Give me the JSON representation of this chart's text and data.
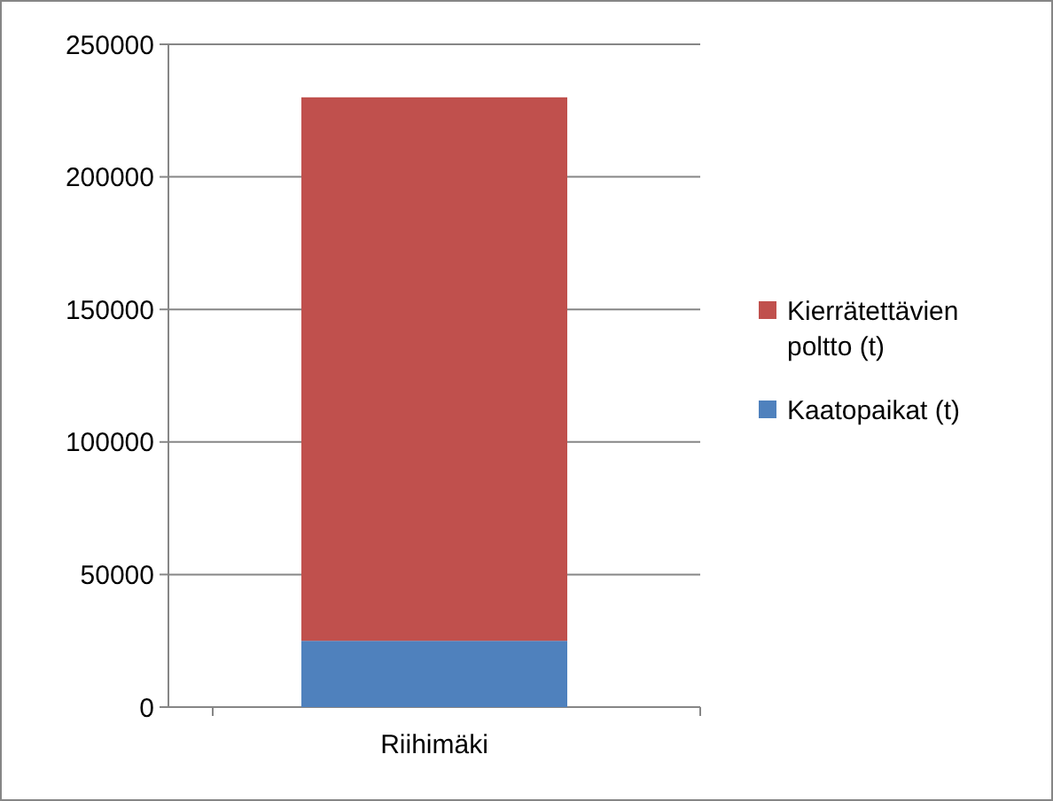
{
  "chart_data": {
    "type": "bar",
    "stacked": true,
    "categories": [
      "Riihimäki"
    ],
    "series": [
      {
        "name": "Kaatopaikat (t)",
        "color": "#4f81bd",
        "values": [
          25000
        ]
      },
      {
        "name": "Kierrätettävien poltto (t)",
        "color": "#c0504d",
        "values": [
          205000
        ]
      }
    ],
    "ylim": [
      0,
      250000
    ],
    "yticks": [
      0,
      50000,
      100000,
      150000,
      200000,
      250000
    ],
    "grid": "y",
    "legend": "right"
  }
}
